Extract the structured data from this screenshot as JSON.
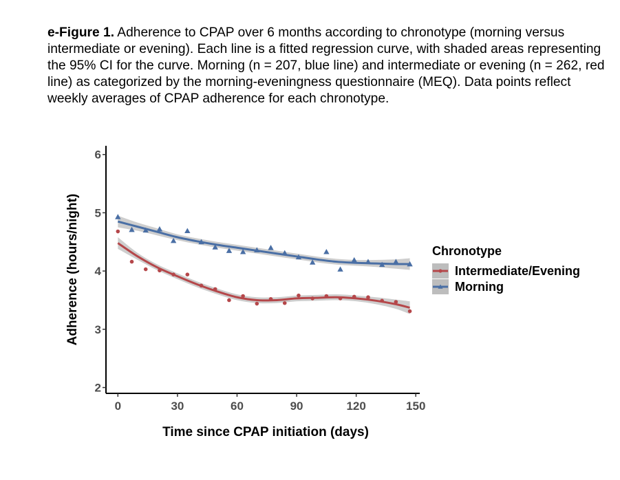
{
  "caption": {
    "label": "e-Figure 1.",
    "text": " Adherence to CPAP over 6 months according to chronotype (morning versus intermediate or evening). Each line is a fitted regression curve, with shaded areas representing the 95% CI for the curve. Morning (n = 207, blue line) and intermediate or evening (n = 262, red line) as categorized by the morning-eveningness questionnaire (MEQ). Data points reflect weekly averages of CPAP adherence for each chronotype."
  },
  "chart_data": {
    "type": "scatter",
    "title": "",
    "xlabel": "Time since CPAP initiation (days)",
    "ylabel": "Adherence (hours/night)",
    "xlim": [
      -6,
      152
    ],
    "ylim": [
      1.9,
      6.15
    ],
    "x_ticks": [
      0,
      30,
      60,
      90,
      120,
      150
    ],
    "y_ticks": [
      2,
      3,
      4,
      5,
      6
    ],
    "grid": false,
    "legend": {
      "title": "Chronotype",
      "position": "right"
    },
    "series": [
      {
        "name": "Intermediate/Evening",
        "color": "#b5474a",
        "marker": "circle",
        "points": [
          [
            0,
            4.68
          ],
          [
            7,
            4.16
          ],
          [
            14,
            4.03
          ],
          [
            21,
            4.01
          ],
          [
            28,
            3.94
          ],
          [
            35,
            3.94
          ],
          [
            42,
            3.75
          ],
          [
            49,
            3.69
          ],
          [
            56,
            3.5
          ],
          [
            63,
            3.57
          ],
          [
            70,
            3.44
          ],
          [
            77,
            3.52
          ],
          [
            84,
            3.45
          ],
          [
            91,
            3.58
          ],
          [
            98,
            3.53
          ],
          [
            105,
            3.57
          ],
          [
            112,
            3.53
          ],
          [
            119,
            3.56
          ],
          [
            126,
            3.55
          ],
          [
            133,
            3.49
          ],
          [
            140,
            3.47
          ],
          [
            147,
            3.31
          ]
        ],
        "fit": [
          [
            0,
            4.48
          ],
          [
            10,
            4.25
          ],
          [
            20,
            4.06
          ],
          [
            30,
            3.91
          ],
          [
            40,
            3.77
          ],
          [
            50,
            3.65
          ],
          [
            60,
            3.55
          ],
          [
            70,
            3.5
          ],
          [
            80,
            3.5
          ],
          [
            90,
            3.53
          ],
          [
            100,
            3.54
          ],
          [
            110,
            3.55
          ],
          [
            120,
            3.53
          ],
          [
            130,
            3.49
          ],
          [
            140,
            3.43
          ],
          [
            147,
            3.37
          ]
        ],
        "ci_half_width": [
          0.1,
          0.06,
          0.05,
          0.05,
          0.05,
          0.05,
          0.05,
          0.05,
          0.05,
          0.05,
          0.05,
          0.05,
          0.05,
          0.06,
          0.08,
          0.11
        ]
      },
      {
        "name": "Morning",
        "color": "#4a6fa5",
        "marker": "triangle",
        "points": [
          [
            0,
            4.93
          ],
          [
            7,
            4.71
          ],
          [
            14,
            4.7
          ],
          [
            21,
            4.72
          ],
          [
            28,
            4.52
          ],
          [
            35,
            4.69
          ],
          [
            42,
            4.5
          ],
          [
            49,
            4.41
          ],
          [
            56,
            4.35
          ],
          [
            63,
            4.33
          ],
          [
            70,
            4.36
          ],
          [
            77,
            4.4
          ],
          [
            84,
            4.31
          ],
          [
            91,
            4.24
          ],
          [
            98,
            4.15
          ],
          [
            105,
            4.33
          ],
          [
            112,
            4.03
          ],
          [
            119,
            4.19
          ],
          [
            126,
            4.16
          ],
          [
            133,
            4.11
          ],
          [
            140,
            4.16
          ],
          [
            147,
            4.12
          ]
        ],
        "fit": [
          [
            0,
            4.85
          ],
          [
            10,
            4.76
          ],
          [
            20,
            4.67
          ],
          [
            30,
            4.58
          ],
          [
            40,
            4.51
          ],
          [
            50,
            4.45
          ],
          [
            60,
            4.4
          ],
          [
            70,
            4.35
          ],
          [
            80,
            4.3
          ],
          [
            90,
            4.25
          ],
          [
            100,
            4.2
          ],
          [
            110,
            4.16
          ],
          [
            120,
            4.14
          ],
          [
            130,
            4.13
          ],
          [
            140,
            4.12
          ],
          [
            147,
            4.12
          ]
        ],
        "ci_half_width": [
          0.1,
          0.07,
          0.06,
          0.05,
          0.05,
          0.05,
          0.05,
          0.05,
          0.05,
          0.05,
          0.05,
          0.05,
          0.05,
          0.06,
          0.08,
          0.1
        ]
      }
    ]
  }
}
